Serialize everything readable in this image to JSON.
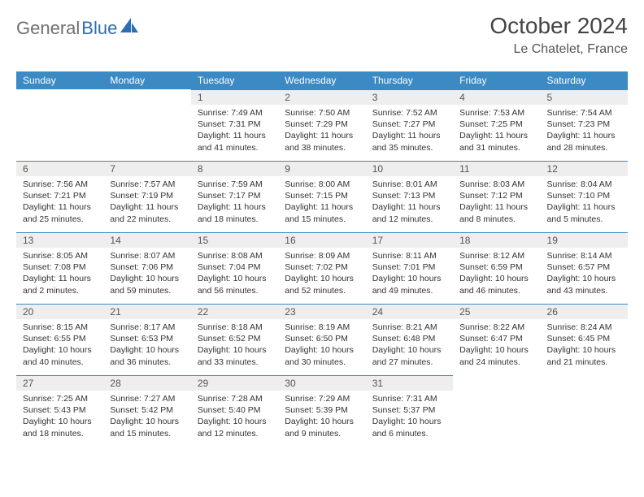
{
  "logo": {
    "part1": "General",
    "part2": "Blue"
  },
  "title": "October 2024",
  "location": "Le Chatelet, France",
  "colors": {
    "header_bg": "#3b8ac4",
    "header_text": "#ffffff",
    "daynum_bg": "#eeeeee",
    "daynum_border": "#3b8ac4",
    "body_text": "#333333",
    "page_bg": "#ffffff"
  },
  "dayNames": [
    "Sunday",
    "Monday",
    "Tuesday",
    "Wednesday",
    "Thursday",
    "Friday",
    "Saturday"
  ],
  "weeks": [
    [
      {
        "n": "",
        "sunrise": "",
        "sunset": "",
        "daylight": "",
        "empty": true
      },
      {
        "n": "",
        "sunrise": "",
        "sunset": "",
        "daylight": "",
        "empty": true
      },
      {
        "n": "1",
        "sunrise": "Sunrise: 7:49 AM",
        "sunset": "Sunset: 7:31 PM",
        "daylight": "Daylight: 11 hours and 41 minutes."
      },
      {
        "n": "2",
        "sunrise": "Sunrise: 7:50 AM",
        "sunset": "Sunset: 7:29 PM",
        "daylight": "Daylight: 11 hours and 38 minutes."
      },
      {
        "n": "3",
        "sunrise": "Sunrise: 7:52 AM",
        "sunset": "Sunset: 7:27 PM",
        "daylight": "Daylight: 11 hours and 35 minutes."
      },
      {
        "n": "4",
        "sunrise": "Sunrise: 7:53 AM",
        "sunset": "Sunset: 7:25 PM",
        "daylight": "Daylight: 11 hours and 31 minutes."
      },
      {
        "n": "5",
        "sunrise": "Sunrise: 7:54 AM",
        "sunset": "Sunset: 7:23 PM",
        "daylight": "Daylight: 11 hours and 28 minutes."
      }
    ],
    [
      {
        "n": "6",
        "sunrise": "Sunrise: 7:56 AM",
        "sunset": "Sunset: 7:21 PM",
        "daylight": "Daylight: 11 hours and 25 minutes."
      },
      {
        "n": "7",
        "sunrise": "Sunrise: 7:57 AM",
        "sunset": "Sunset: 7:19 PM",
        "daylight": "Daylight: 11 hours and 22 minutes."
      },
      {
        "n": "8",
        "sunrise": "Sunrise: 7:59 AM",
        "sunset": "Sunset: 7:17 PM",
        "daylight": "Daylight: 11 hours and 18 minutes."
      },
      {
        "n": "9",
        "sunrise": "Sunrise: 8:00 AM",
        "sunset": "Sunset: 7:15 PM",
        "daylight": "Daylight: 11 hours and 15 minutes."
      },
      {
        "n": "10",
        "sunrise": "Sunrise: 8:01 AM",
        "sunset": "Sunset: 7:13 PM",
        "daylight": "Daylight: 11 hours and 12 minutes."
      },
      {
        "n": "11",
        "sunrise": "Sunrise: 8:03 AM",
        "sunset": "Sunset: 7:12 PM",
        "daylight": "Daylight: 11 hours and 8 minutes."
      },
      {
        "n": "12",
        "sunrise": "Sunrise: 8:04 AM",
        "sunset": "Sunset: 7:10 PM",
        "daylight": "Daylight: 11 hours and 5 minutes."
      }
    ],
    [
      {
        "n": "13",
        "sunrise": "Sunrise: 8:05 AM",
        "sunset": "Sunset: 7:08 PM",
        "daylight": "Daylight: 11 hours and 2 minutes."
      },
      {
        "n": "14",
        "sunrise": "Sunrise: 8:07 AM",
        "sunset": "Sunset: 7:06 PM",
        "daylight": "Daylight: 10 hours and 59 minutes."
      },
      {
        "n": "15",
        "sunrise": "Sunrise: 8:08 AM",
        "sunset": "Sunset: 7:04 PM",
        "daylight": "Daylight: 10 hours and 56 minutes."
      },
      {
        "n": "16",
        "sunrise": "Sunrise: 8:09 AM",
        "sunset": "Sunset: 7:02 PM",
        "daylight": "Daylight: 10 hours and 52 minutes."
      },
      {
        "n": "17",
        "sunrise": "Sunrise: 8:11 AM",
        "sunset": "Sunset: 7:01 PM",
        "daylight": "Daylight: 10 hours and 49 minutes."
      },
      {
        "n": "18",
        "sunrise": "Sunrise: 8:12 AM",
        "sunset": "Sunset: 6:59 PM",
        "daylight": "Daylight: 10 hours and 46 minutes."
      },
      {
        "n": "19",
        "sunrise": "Sunrise: 8:14 AM",
        "sunset": "Sunset: 6:57 PM",
        "daylight": "Daylight: 10 hours and 43 minutes."
      }
    ],
    [
      {
        "n": "20",
        "sunrise": "Sunrise: 8:15 AM",
        "sunset": "Sunset: 6:55 PM",
        "daylight": "Daylight: 10 hours and 40 minutes."
      },
      {
        "n": "21",
        "sunrise": "Sunrise: 8:17 AM",
        "sunset": "Sunset: 6:53 PM",
        "daylight": "Daylight: 10 hours and 36 minutes."
      },
      {
        "n": "22",
        "sunrise": "Sunrise: 8:18 AM",
        "sunset": "Sunset: 6:52 PM",
        "daylight": "Daylight: 10 hours and 33 minutes."
      },
      {
        "n": "23",
        "sunrise": "Sunrise: 8:19 AM",
        "sunset": "Sunset: 6:50 PM",
        "daylight": "Daylight: 10 hours and 30 minutes."
      },
      {
        "n": "24",
        "sunrise": "Sunrise: 8:21 AM",
        "sunset": "Sunset: 6:48 PM",
        "daylight": "Daylight: 10 hours and 27 minutes."
      },
      {
        "n": "25",
        "sunrise": "Sunrise: 8:22 AM",
        "sunset": "Sunset: 6:47 PM",
        "daylight": "Daylight: 10 hours and 24 minutes."
      },
      {
        "n": "26",
        "sunrise": "Sunrise: 8:24 AM",
        "sunset": "Sunset: 6:45 PM",
        "daylight": "Daylight: 10 hours and 21 minutes."
      }
    ],
    [
      {
        "n": "27",
        "sunrise": "Sunrise: 7:25 AM",
        "sunset": "Sunset: 5:43 PM",
        "daylight": "Daylight: 10 hours and 18 minutes."
      },
      {
        "n": "28",
        "sunrise": "Sunrise: 7:27 AM",
        "sunset": "Sunset: 5:42 PM",
        "daylight": "Daylight: 10 hours and 15 minutes."
      },
      {
        "n": "29",
        "sunrise": "Sunrise: 7:28 AM",
        "sunset": "Sunset: 5:40 PM",
        "daylight": "Daylight: 10 hours and 12 minutes."
      },
      {
        "n": "30",
        "sunrise": "Sunrise: 7:29 AM",
        "sunset": "Sunset: 5:39 PM",
        "daylight": "Daylight: 10 hours and 9 minutes."
      },
      {
        "n": "31",
        "sunrise": "Sunrise: 7:31 AM",
        "sunset": "Sunset: 5:37 PM",
        "daylight": "Daylight: 10 hours and 6 minutes."
      },
      {
        "n": "",
        "sunrise": "",
        "sunset": "",
        "daylight": "",
        "empty": true
      },
      {
        "n": "",
        "sunrise": "",
        "sunset": "",
        "daylight": "",
        "empty": true
      }
    ]
  ]
}
